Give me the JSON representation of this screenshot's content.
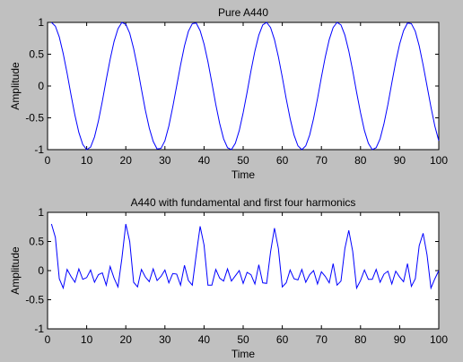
{
  "chart_data": [
    {
      "type": "line",
      "title": "Pure A440",
      "xlabel": "Time",
      "ylabel": "Amplitude",
      "xlim": [
        0,
        100
      ],
      "ylim": [
        -1,
        1
      ],
      "xticks": [
        "0",
        "10",
        "20",
        "30",
        "40",
        "50",
        "60",
        "70",
        "80",
        "90",
        "100"
      ],
      "yticks": [
        "-1",
        "-0.5",
        "0",
        "0.5",
        "1"
      ],
      "grid": false,
      "series": [
        {
          "color": "#0000ff",
          "x": [
            1,
            2,
            3,
            4,
            5,
            6,
            7,
            8,
            9,
            10,
            11,
            12,
            13,
            14,
            15,
            16,
            17,
            18,
            19,
            20,
            21,
            22,
            23,
            24,
            25,
            26,
            27,
            28,
            29,
            30,
            31,
            32,
            33,
            34,
            35,
            36,
            37,
            38,
            39,
            40,
            41,
            42,
            43,
            44,
            45,
            46,
            47,
            48,
            49,
            50,
            51,
            52,
            53,
            54,
            55,
            56,
            57,
            58,
            59,
            60,
            61,
            62,
            63,
            64,
            65,
            66,
            67,
            68,
            69,
            70,
            71,
            72,
            73,
            74,
            75,
            76,
            77,
            78,
            79,
            80,
            81,
            82,
            83,
            84,
            85,
            86,
            87,
            88,
            89,
            90,
            91,
            92,
            93,
            94,
            95,
            96,
            97,
            98,
            99,
            100
          ],
          "values": [
            1,
            0.94,
            0.77,
            0.51,
            0.2,
            -0.14,
            -0.46,
            -0.73,
            -0.92,
            -1,
            -0.96,
            -0.8,
            -0.55,
            -0.24,
            0.1,
            0.42,
            0.7,
            0.9,
            1,
            0.97,
            0.83,
            0.59,
            0.29,
            -0.05,
            -0.38,
            -0.66,
            -0.87,
            -0.99,
            -0.98,
            -0.86,
            -0.63,
            -0.33,
            0,
            0.33,
            0.63,
            0.86,
            0.98,
            0.99,
            0.87,
            0.66,
            0.38,
            0.05,
            -0.29,
            -0.59,
            -0.83,
            -0.97,
            -1,
            -0.9,
            -0.7,
            -0.42,
            -0.1,
            0.24,
            0.55,
            0.8,
            0.96,
            1,
            0.92,
            0.73,
            0.46,
            0.14,
            -0.2,
            -0.51,
            -0.77,
            -0.94,
            -1,
            -0.94,
            -0.77,
            -0.51,
            -0.2,
            0.14,
            0.46,
            0.73,
            0.92,
            1,
            0.96,
            0.8,
            0.55,
            0.24,
            -0.1,
            -0.42,
            -0.7,
            -0.9,
            -1,
            -0.97,
            -0.83,
            -0.59,
            -0.29,
            0.05,
            0.38,
            0.66,
            0.87,
            0.99,
            0.98,
            0.86,
            0.63,
            0.33,
            0,
            -0.33,
            -0.63,
            -0.86
          ]
        }
      ]
    },
    {
      "type": "line",
      "title": "A440 with fundamental and first four harmonics",
      "xlabel": "Time",
      "ylabel": "Amplitude",
      "xlim": [
        0,
        100
      ],
      "ylim": [
        -1,
        1
      ],
      "xticks": [
        "0",
        "10",
        "20",
        "30",
        "40",
        "50",
        "60",
        "70",
        "80",
        "90",
        "100"
      ],
      "yticks": [
        "-1",
        "-0.5",
        "0",
        "0.5",
        "1"
      ],
      "grid": false,
      "series": [
        {
          "color": "#0000ff",
          "x": [
            1,
            2,
            3,
            4,
            5,
            6,
            7,
            8,
            9,
            10,
            11,
            12,
            13,
            14,
            15,
            16,
            17,
            18,
            19,
            20,
            21,
            22,
            23,
            24,
            25,
            26,
            27,
            28,
            29,
            30,
            31,
            32,
            33,
            34,
            35,
            36,
            37,
            38,
            39,
            40,
            41,
            42,
            43,
            44,
            45,
            46,
            47,
            48,
            49,
            50,
            51,
            52,
            53,
            54,
            55,
            56,
            57,
            58,
            59,
            60,
            61,
            62,
            63,
            64,
            65,
            66,
            67,
            68,
            69,
            70,
            71,
            72,
            73,
            74,
            75,
            76,
            77,
            78,
            79,
            80,
            81,
            82,
            83,
            84,
            85,
            86,
            87,
            88,
            89,
            90,
            91,
            92,
            93,
            94,
            95,
            96,
            97,
            98,
            99,
            100
          ],
          "values": [
            0.8,
            0.57,
            -0.14,
            -0.3,
            0.02,
            -0.1,
            -0.2,
            0.03,
            -0.15,
            -0.12,
            0.01,
            -0.2,
            -0.07,
            -0.04,
            -0.25,
            0.07,
            -0.13,
            -0.28,
            0.21,
            0.8,
            0.5,
            -0.2,
            -0.28,
            0.02,
            -0.11,
            -0.19,
            0.03,
            -0.17,
            -0.1,
            0.01,
            -0.21,
            -0.05,
            -0.06,
            -0.25,
            0.09,
            -0.17,
            -0.25,
            0.27,
            0.76,
            0.44,
            -0.25,
            -0.25,
            0.02,
            -0.13,
            -0.18,
            0.03,
            -0.18,
            -0.09,
            0,
            -0.22,
            -0.03,
            -0.07,
            -0.23,
            0.1,
            -0.21,
            -0.22,
            0.32,
            0.73,
            0.38,
            -0.28,
            -0.21,
            0.01,
            -0.14,
            -0.16,
            0.02,
            -0.2,
            -0.07,
            0,
            -0.23,
            -0.02,
            -0.1,
            -0.21,
            0.12,
            -0.25,
            -0.18,
            0.38,
            0.69,
            0.33,
            -0.3,
            -0.17,
            0.01,
            -0.15,
            -0.15,
            0.02,
            -0.2,
            -0.06,
            -0.01,
            -0.23,
            -0.01,
            -0.11,
            -0.19,
            0.12,
            -0.27,
            -0.14,
            0.43,
            0.64,
            0.27,
            -0.3,
            -0.14,
            0
          ]
        }
      ]
    }
  ]
}
